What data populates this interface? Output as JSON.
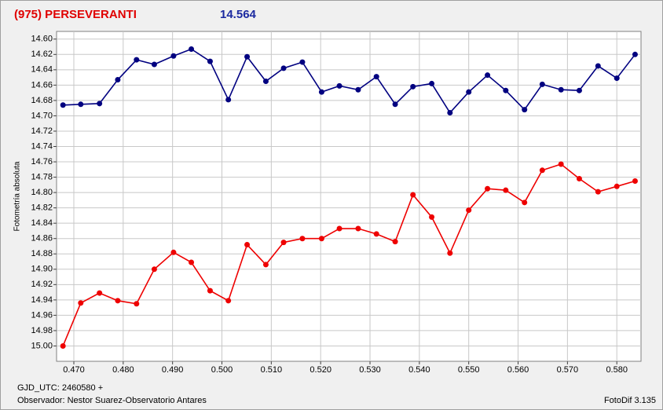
{
  "chart_data": {
    "type": "line",
    "title": "(975) PERSEVERANTI",
    "subtitle": "14.564",
    "ylabel": "Fotometría absoluta",
    "footer_left_1": "GJD_UTC: 2460580 +",
    "footer_left_2": "Observador: Nestor Suarez-Observatorio Antares",
    "footer_right": "FotoDif 3.135",
    "y_inverted": true,
    "grid": true,
    "xlim": [
      0.4665,
      0.5849
    ],
    "ylim": [
      14.59,
      15.02
    ],
    "xticks": [
      {
        "value": 0.47,
        "label": "0.470"
      },
      {
        "value": 0.48,
        "label": "0.480"
      },
      {
        "value": 0.49,
        "label": "0.490"
      },
      {
        "value": 0.5,
        "label": "0.500"
      },
      {
        "value": 0.51,
        "label": "0.510"
      },
      {
        "value": 0.52,
        "label": "0.520"
      },
      {
        "value": 0.53,
        "label": "0.530"
      },
      {
        "value": 0.54,
        "label": "0.540"
      },
      {
        "value": 0.55,
        "label": "0.550"
      },
      {
        "value": 0.56,
        "label": "0.560"
      },
      {
        "value": 0.57,
        "label": "0.570"
      },
      {
        "value": 0.58,
        "label": "0.580"
      }
    ],
    "yticks": [
      {
        "value": 14.6,
        "label": "14.60"
      },
      {
        "value": 14.62,
        "label": "14.62"
      },
      {
        "value": 14.64,
        "label": "14.64"
      },
      {
        "value": 14.66,
        "label": "14.66"
      },
      {
        "value": 14.68,
        "label": "14.68"
      },
      {
        "value": 14.7,
        "label": "14.70"
      },
      {
        "value": 14.72,
        "label": "14.72"
      },
      {
        "value": 14.74,
        "label": "14.74"
      },
      {
        "value": 14.76,
        "label": "14.76"
      },
      {
        "value": 14.78,
        "label": "14.78"
      },
      {
        "value": 14.8,
        "label": "14.80"
      },
      {
        "value": 14.82,
        "label": "14.82"
      },
      {
        "value": 14.84,
        "label": "14.84"
      },
      {
        "value": 14.86,
        "label": "14.86"
      },
      {
        "value": 14.88,
        "label": "14.88"
      },
      {
        "value": 14.9,
        "label": "14.90"
      },
      {
        "value": 14.92,
        "label": "14.92"
      },
      {
        "value": 14.94,
        "label": "14.94"
      },
      {
        "value": 14.96,
        "label": "14.96"
      },
      {
        "value": 14.98,
        "label": "14.98"
      },
      {
        "value": 15.0,
        "label": "15.00"
      }
    ],
    "x": [
      0.4678,
      0.4714,
      0.4752,
      0.4789,
      0.4827,
      0.4863,
      0.4902,
      0.4938,
      0.4976,
      0.5013,
      0.5051,
      0.5089,
      0.5125,
      0.5163,
      0.5202,
      0.5238,
      0.5276,
      0.5313,
      0.5351,
      0.5387,
      0.5425,
      0.5462,
      0.55,
      0.5538,
      0.5575,
      0.5613,
      0.5649,
      0.5687,
      0.5724,
      0.5762,
      0.58,
      0.5837
    ],
    "series": [
      {
        "color": "#000080",
        "values": [
          14.686,
          14.685,
          14.684,
          14.653,
          14.627,
          14.633,
          14.622,
          14.613,
          14.629,
          14.679,
          14.623,
          14.655,
          14.638,
          14.63,
          14.669,
          14.661,
          14.666,
          14.649,
          14.685,
          14.662,
          14.658,
          14.696,
          14.669,
          14.647,
          14.667,
          14.692,
          14.659,
          14.666,
          14.667,
          14.635,
          14.651,
          14.62
        ]
      },
      {
        "color": "#ee0000",
        "values": [
          15.0,
          14.944,
          14.931,
          14.941,
          14.945,
          14.9,
          14.878,
          14.891,
          14.928,
          14.941,
          14.868,
          14.894,
          14.865,
          14.86,
          14.86,
          14.847,
          14.847,
          14.854,
          14.864,
          14.803,
          14.832,
          14.879,
          14.823,
          14.795,
          14.797,
          14.813,
          14.771,
          14.763,
          14.782,
          14.799,
          14.792,
          14.785
        ]
      }
    ]
  }
}
